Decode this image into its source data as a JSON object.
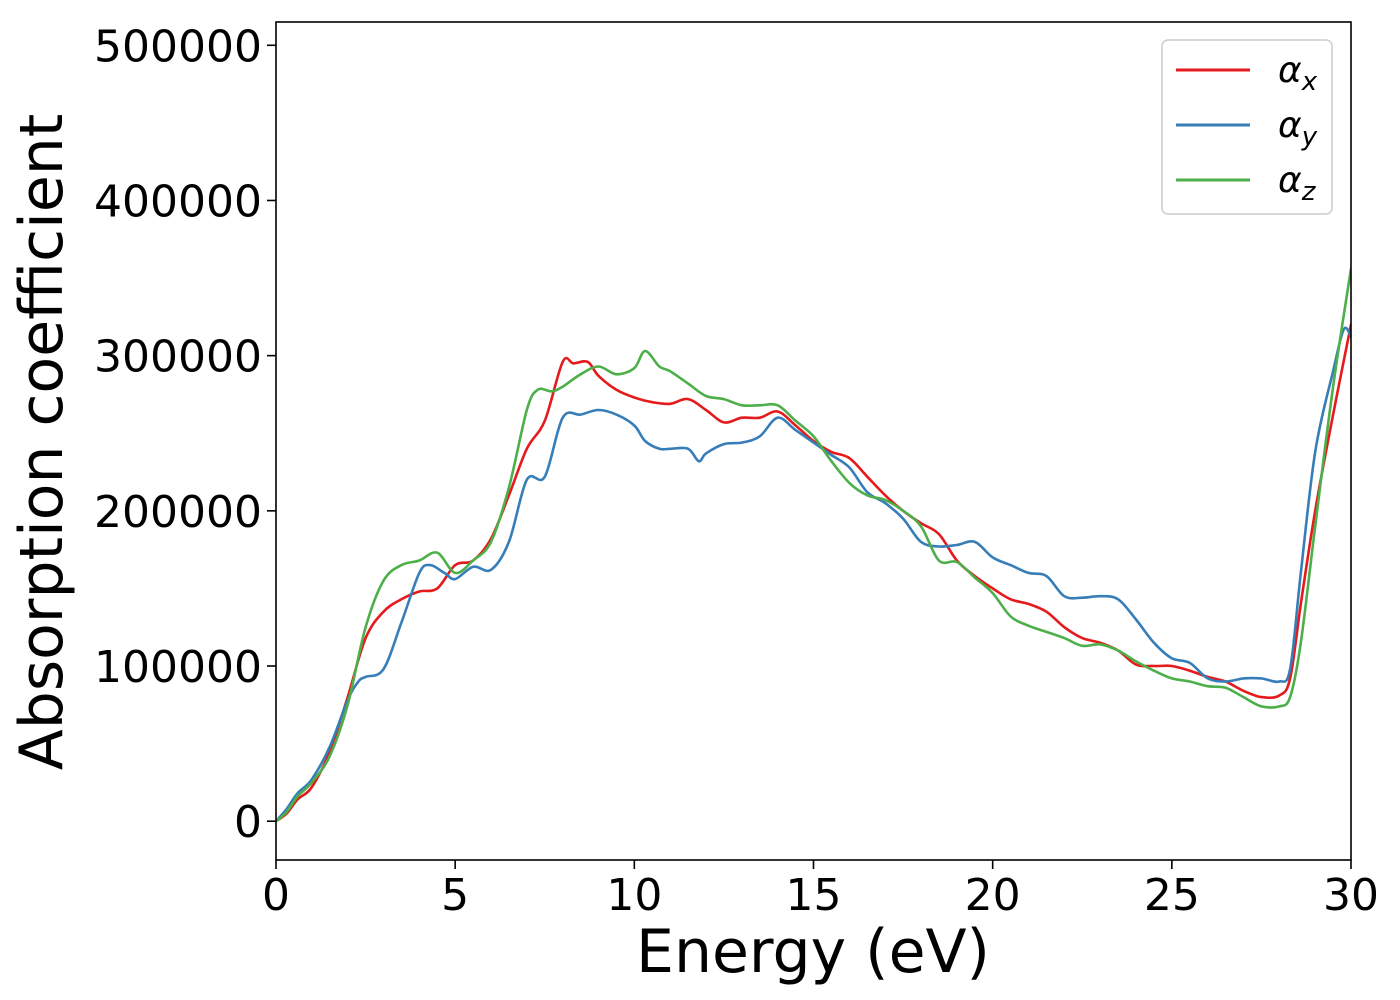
{
  "chart_data": {
    "type": "line",
    "title": "",
    "xlabel": "Energy (eV)",
    "ylabel": "Absorption coefficient",
    "xlim": [
      0,
      30
    ],
    "ylim": [
      -25000,
      515000
    ],
    "xticks": [
      "0",
      "5",
      "10",
      "15",
      "20",
      "25",
      "30"
    ],
    "yticks": [
      "0",
      "100000",
      "200000",
      "300000",
      "400000",
      "500000"
    ],
    "grid": false,
    "legend_position": "top-right",
    "series": [
      {
        "name": "αx",
        "legend_main": "α",
        "legend_sub": "x",
        "color": "#e41a1c",
        "points": [
          [
            0,
            0
          ],
          [
            0.3,
            5000
          ],
          [
            0.6,
            14000
          ],
          [
            1,
            22000
          ],
          [
            1.5,
            45000
          ],
          [
            2,
            80000
          ],
          [
            2.5,
            118000
          ],
          [
            3,
            135000
          ],
          [
            3.5,
            143000
          ],
          [
            4,
            148000
          ],
          [
            4.5,
            150000
          ],
          [
            5,
            165000
          ],
          [
            5.5,
            168000
          ],
          [
            6,
            182000
          ],
          [
            6.5,
            210000
          ],
          [
            7,
            240000
          ],
          [
            7.5,
            258000
          ],
          [
            8,
            296000
          ],
          [
            8.3,
            295000
          ],
          [
            8.7,
            296000
          ],
          [
            9,
            287000
          ],
          [
            9.5,
            278000
          ],
          [
            10,
            273000
          ],
          [
            10.5,
            270000
          ],
          [
            11,
            269000
          ],
          [
            11.5,
            272000
          ],
          [
            12,
            265000
          ],
          [
            12.5,
            257000
          ],
          [
            13,
            260000
          ],
          [
            13.5,
            260000
          ],
          [
            14,
            264000
          ],
          [
            14.5,
            255000
          ],
          [
            15,
            245000
          ],
          [
            15.5,
            238000
          ],
          [
            16,
            234000
          ],
          [
            16.5,
            222000
          ],
          [
            17,
            210000
          ],
          [
            17.5,
            200000
          ],
          [
            18,
            192000
          ],
          [
            18.5,
            185000
          ],
          [
            19,
            168000
          ],
          [
            19.5,
            158000
          ],
          [
            20,
            150000
          ],
          [
            20.5,
            143000
          ],
          [
            21,
            140000
          ],
          [
            21.5,
            135000
          ],
          [
            22,
            125000
          ],
          [
            22.5,
            118000
          ],
          [
            23,
            115000
          ],
          [
            23.5,
            110000
          ],
          [
            24,
            101000
          ],
          [
            24.5,
            100000
          ],
          [
            25,
            100000
          ],
          [
            25.5,
            97000
          ],
          [
            26,
            93000
          ],
          [
            26.5,
            90000
          ],
          [
            27,
            84000
          ],
          [
            27.5,
            80000
          ],
          [
            28,
            81000
          ],
          [
            28.3,
            92000
          ],
          [
            28.6,
            140000
          ],
          [
            29,
            200000
          ],
          [
            29.5,
            262000
          ],
          [
            30,
            320000
          ]
        ]
      },
      {
        "name": "αy",
        "legend_main": "α",
        "legend_sub": "y",
        "color": "#377eb8",
        "points": [
          [
            0,
            0
          ],
          [
            0.3,
            8000
          ],
          [
            0.6,
            18000
          ],
          [
            1,
            27000
          ],
          [
            1.5,
            48000
          ],
          [
            2,
            78000
          ],
          [
            2.3,
            90000
          ],
          [
            2.5,
            93000
          ],
          [
            3,
            98000
          ],
          [
            3.5,
            128000
          ],
          [
            4,
            160000
          ],
          [
            4.3,
            165000
          ],
          [
            4.7,
            160000
          ],
          [
            5,
            156000
          ],
          [
            5.5,
            164000
          ],
          [
            6,
            162000
          ],
          [
            6.5,
            180000
          ],
          [
            7,
            220000
          ],
          [
            7.5,
            222000
          ],
          [
            8,
            260000
          ],
          [
            8.5,
            262000
          ],
          [
            9,
            265000
          ],
          [
            9.5,
            262000
          ],
          [
            10,
            255000
          ],
          [
            10.3,
            245000
          ],
          [
            10.7,
            240000
          ],
          [
            11,
            240000
          ],
          [
            11.5,
            240000
          ],
          [
            11.8,
            232000
          ],
          [
            12,
            237000
          ],
          [
            12.5,
            243000
          ],
          [
            13,
            244000
          ],
          [
            13.5,
            248000
          ],
          [
            14,
            260000
          ],
          [
            14.5,
            252000
          ],
          [
            15,
            244000
          ],
          [
            15.5,
            236000
          ],
          [
            16,
            228000
          ],
          [
            16.5,
            212000
          ],
          [
            17,
            205000
          ],
          [
            17.5,
            195000
          ],
          [
            18,
            180000
          ],
          [
            18.5,
            177000
          ],
          [
            19,
            178000
          ],
          [
            19.5,
            180000
          ],
          [
            20,
            170000
          ],
          [
            20.5,
            165000
          ],
          [
            21,
            160000
          ],
          [
            21.5,
            158000
          ],
          [
            22,
            145000
          ],
          [
            22.5,
            144000
          ],
          [
            23,
            145000
          ],
          [
            23.5,
            143000
          ],
          [
            24,
            130000
          ],
          [
            24.5,
            115000
          ],
          [
            25,
            105000
          ],
          [
            25.5,
            102000
          ],
          [
            26,
            92000
          ],
          [
            26.5,
            90000
          ],
          [
            27,
            92000
          ],
          [
            27.5,
            92000
          ],
          [
            28,
            90000
          ],
          [
            28.3,
            98000
          ],
          [
            28.6,
            160000
          ],
          [
            29,
            238000
          ],
          [
            29.5,
            290000
          ],
          [
            29.8,
            317000
          ],
          [
            30,
            312000
          ]
        ]
      },
      {
        "name": "αz",
        "legend_main": "α",
        "legend_sub": "z",
        "color": "#4daf4a",
        "points": [
          [
            0,
            0
          ],
          [
            0.3,
            6000
          ],
          [
            0.6,
            16000
          ],
          [
            1,
            25000
          ],
          [
            1.5,
            42000
          ],
          [
            2,
            75000
          ],
          [
            2.5,
            125000
          ],
          [
            3,
            155000
          ],
          [
            3.5,
            165000
          ],
          [
            4,
            168000
          ],
          [
            4.5,
            173000
          ],
          [
            5,
            160000
          ],
          [
            5.5,
            168000
          ],
          [
            6,
            180000
          ],
          [
            6.5,
            215000
          ],
          [
            7,
            265000
          ],
          [
            7.3,
            278000
          ],
          [
            7.7,
            277000
          ],
          [
            8,
            280000
          ],
          [
            8.5,
            288000
          ],
          [
            9,
            293000
          ],
          [
            9.5,
            288000
          ],
          [
            10,
            292000
          ],
          [
            10.3,
            303000
          ],
          [
            10.7,
            293000
          ],
          [
            11,
            290000
          ],
          [
            11.5,
            282000
          ],
          [
            12,
            274000
          ],
          [
            12.5,
            272000
          ],
          [
            13,
            268000
          ],
          [
            13.5,
            268000
          ],
          [
            14,
            268000
          ],
          [
            14.5,
            258000
          ],
          [
            15,
            248000
          ],
          [
            15.5,
            232000
          ],
          [
            16,
            218000
          ],
          [
            16.5,
            210000
          ],
          [
            17,
            207000
          ],
          [
            17.5,
            200000
          ],
          [
            18,
            190000
          ],
          [
            18.5,
            168000
          ],
          [
            19,
            167000
          ],
          [
            19.5,
            157000
          ],
          [
            20,
            147000
          ],
          [
            20.5,
            132000
          ],
          [
            21,
            126000
          ],
          [
            21.5,
            122000
          ],
          [
            22,
            118000
          ],
          [
            22.5,
            113000
          ],
          [
            23,
            114000
          ],
          [
            23.5,
            110000
          ],
          [
            24,
            103000
          ],
          [
            24.5,
            97000
          ],
          [
            25,
            92000
          ],
          [
            25.5,
            90000
          ],
          [
            26,
            87000
          ],
          [
            26.5,
            86000
          ],
          [
            27,
            80000
          ],
          [
            27.5,
            74000
          ],
          [
            28,
            74000
          ],
          [
            28.3,
            80000
          ],
          [
            28.6,
            115000
          ],
          [
            29,
            190000
          ],
          [
            29.5,
            280000
          ],
          [
            30,
            356000
          ]
        ]
      }
    ]
  }
}
